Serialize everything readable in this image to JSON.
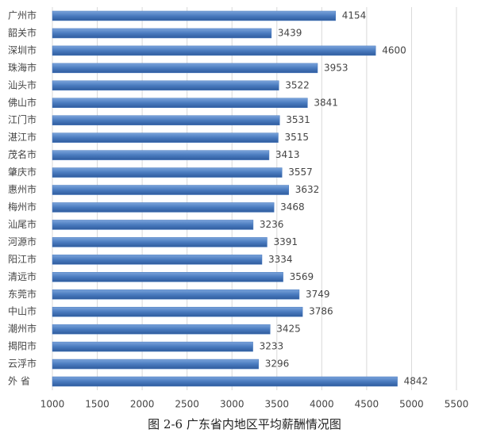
{
  "chart_data": {
    "type": "hbar",
    "title": "图 2-6  广东省内地区平均薪酬情况图",
    "categories": [
      "广州市",
      "韶关市",
      "深圳市",
      "珠海市",
      "汕头市",
      "佛山市",
      "江门市",
      "湛江市",
      "茂名市",
      "肇庆市",
      "惠州市",
      "梅州市",
      "汕尾市",
      "河源市",
      "阳江市",
      "清远市",
      "东莞市",
      "中山市",
      "潮州市",
      "揭阳市",
      "云浮市",
      "外 省"
    ],
    "values": [
      4154,
      3439,
      4600,
      3953,
      3522,
      3841,
      3531,
      3515,
      3413,
      3557,
      3632,
      3468,
      3236,
      3391,
      3334,
      3569,
      3749,
      3786,
      3425,
      3233,
      3296,
      4842
    ],
    "color": "#4a7bbf",
    "xlim": [
      1000,
      5500
    ],
    "xticks": [
      1000,
      1500,
      2000,
      2500,
      3000,
      3500,
      4000,
      4500,
      5000,
      5500
    ],
    "grid": true
  }
}
